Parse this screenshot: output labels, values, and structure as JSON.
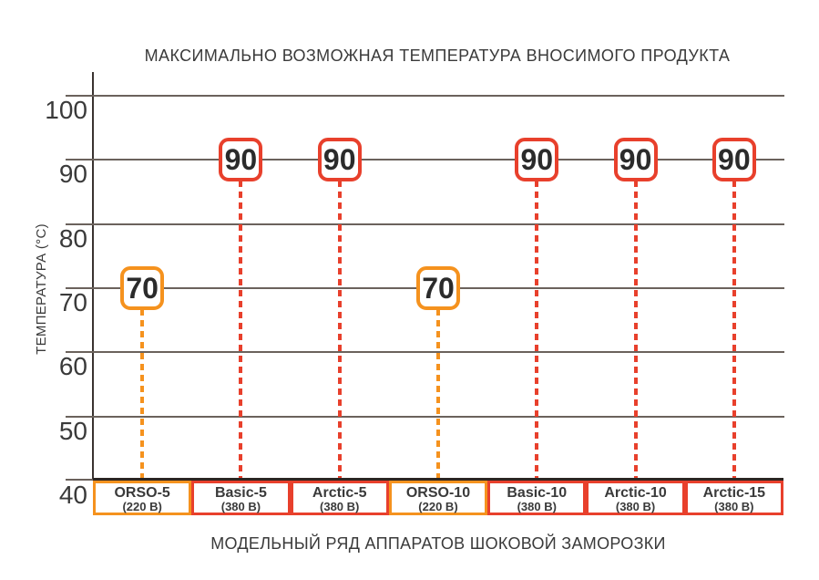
{
  "colors": {
    "orange": "#F5921E",
    "red": "#E8402C",
    "grid": "#6B625C",
    "axis": "#3A3330",
    "baseline": "#2B2522",
    "text": "#3A3A3A",
    "badge_text": "#2B2B2B",
    "background": "#FFFFFF"
  },
  "chart_data": {
    "type": "scatter",
    "title": "МАКСИМАЛЬНО ВОЗМОЖНАЯ ТЕМПЕРАТУРА ВНОСИМОГО ПРОДУКТА",
    "xlabel": "МОДЕЛЬНЫЙ РЯД АППАРАТОВ ШОКОВОЙ ЗАМОРОЗКИ",
    "ylabel": "ТЕМПЕРАТУРА (°C)",
    "categories": [
      "ORSO-5",
      "Basic-5",
      "Arctic-5",
      "ORSO-10",
      "Basic-10",
      "Arctic-10",
      "Arctic-15"
    ],
    "category_voltages": [
      "(220 В)",
      "(380 В)",
      "(380 В)",
      "(220 В)",
      "(380 В)",
      "(380 В)",
      "(380 В)"
    ],
    "values": [
      70,
      90,
      90,
      70,
      90,
      90,
      90
    ],
    "value_colors": [
      "orange",
      "red",
      "red",
      "orange",
      "red",
      "red",
      "red"
    ],
    "ylim": [
      40,
      100
    ],
    "yticks": [
      100,
      90,
      80,
      70,
      60,
      50,
      40
    ],
    "grid": true,
    "legend": false
  }
}
